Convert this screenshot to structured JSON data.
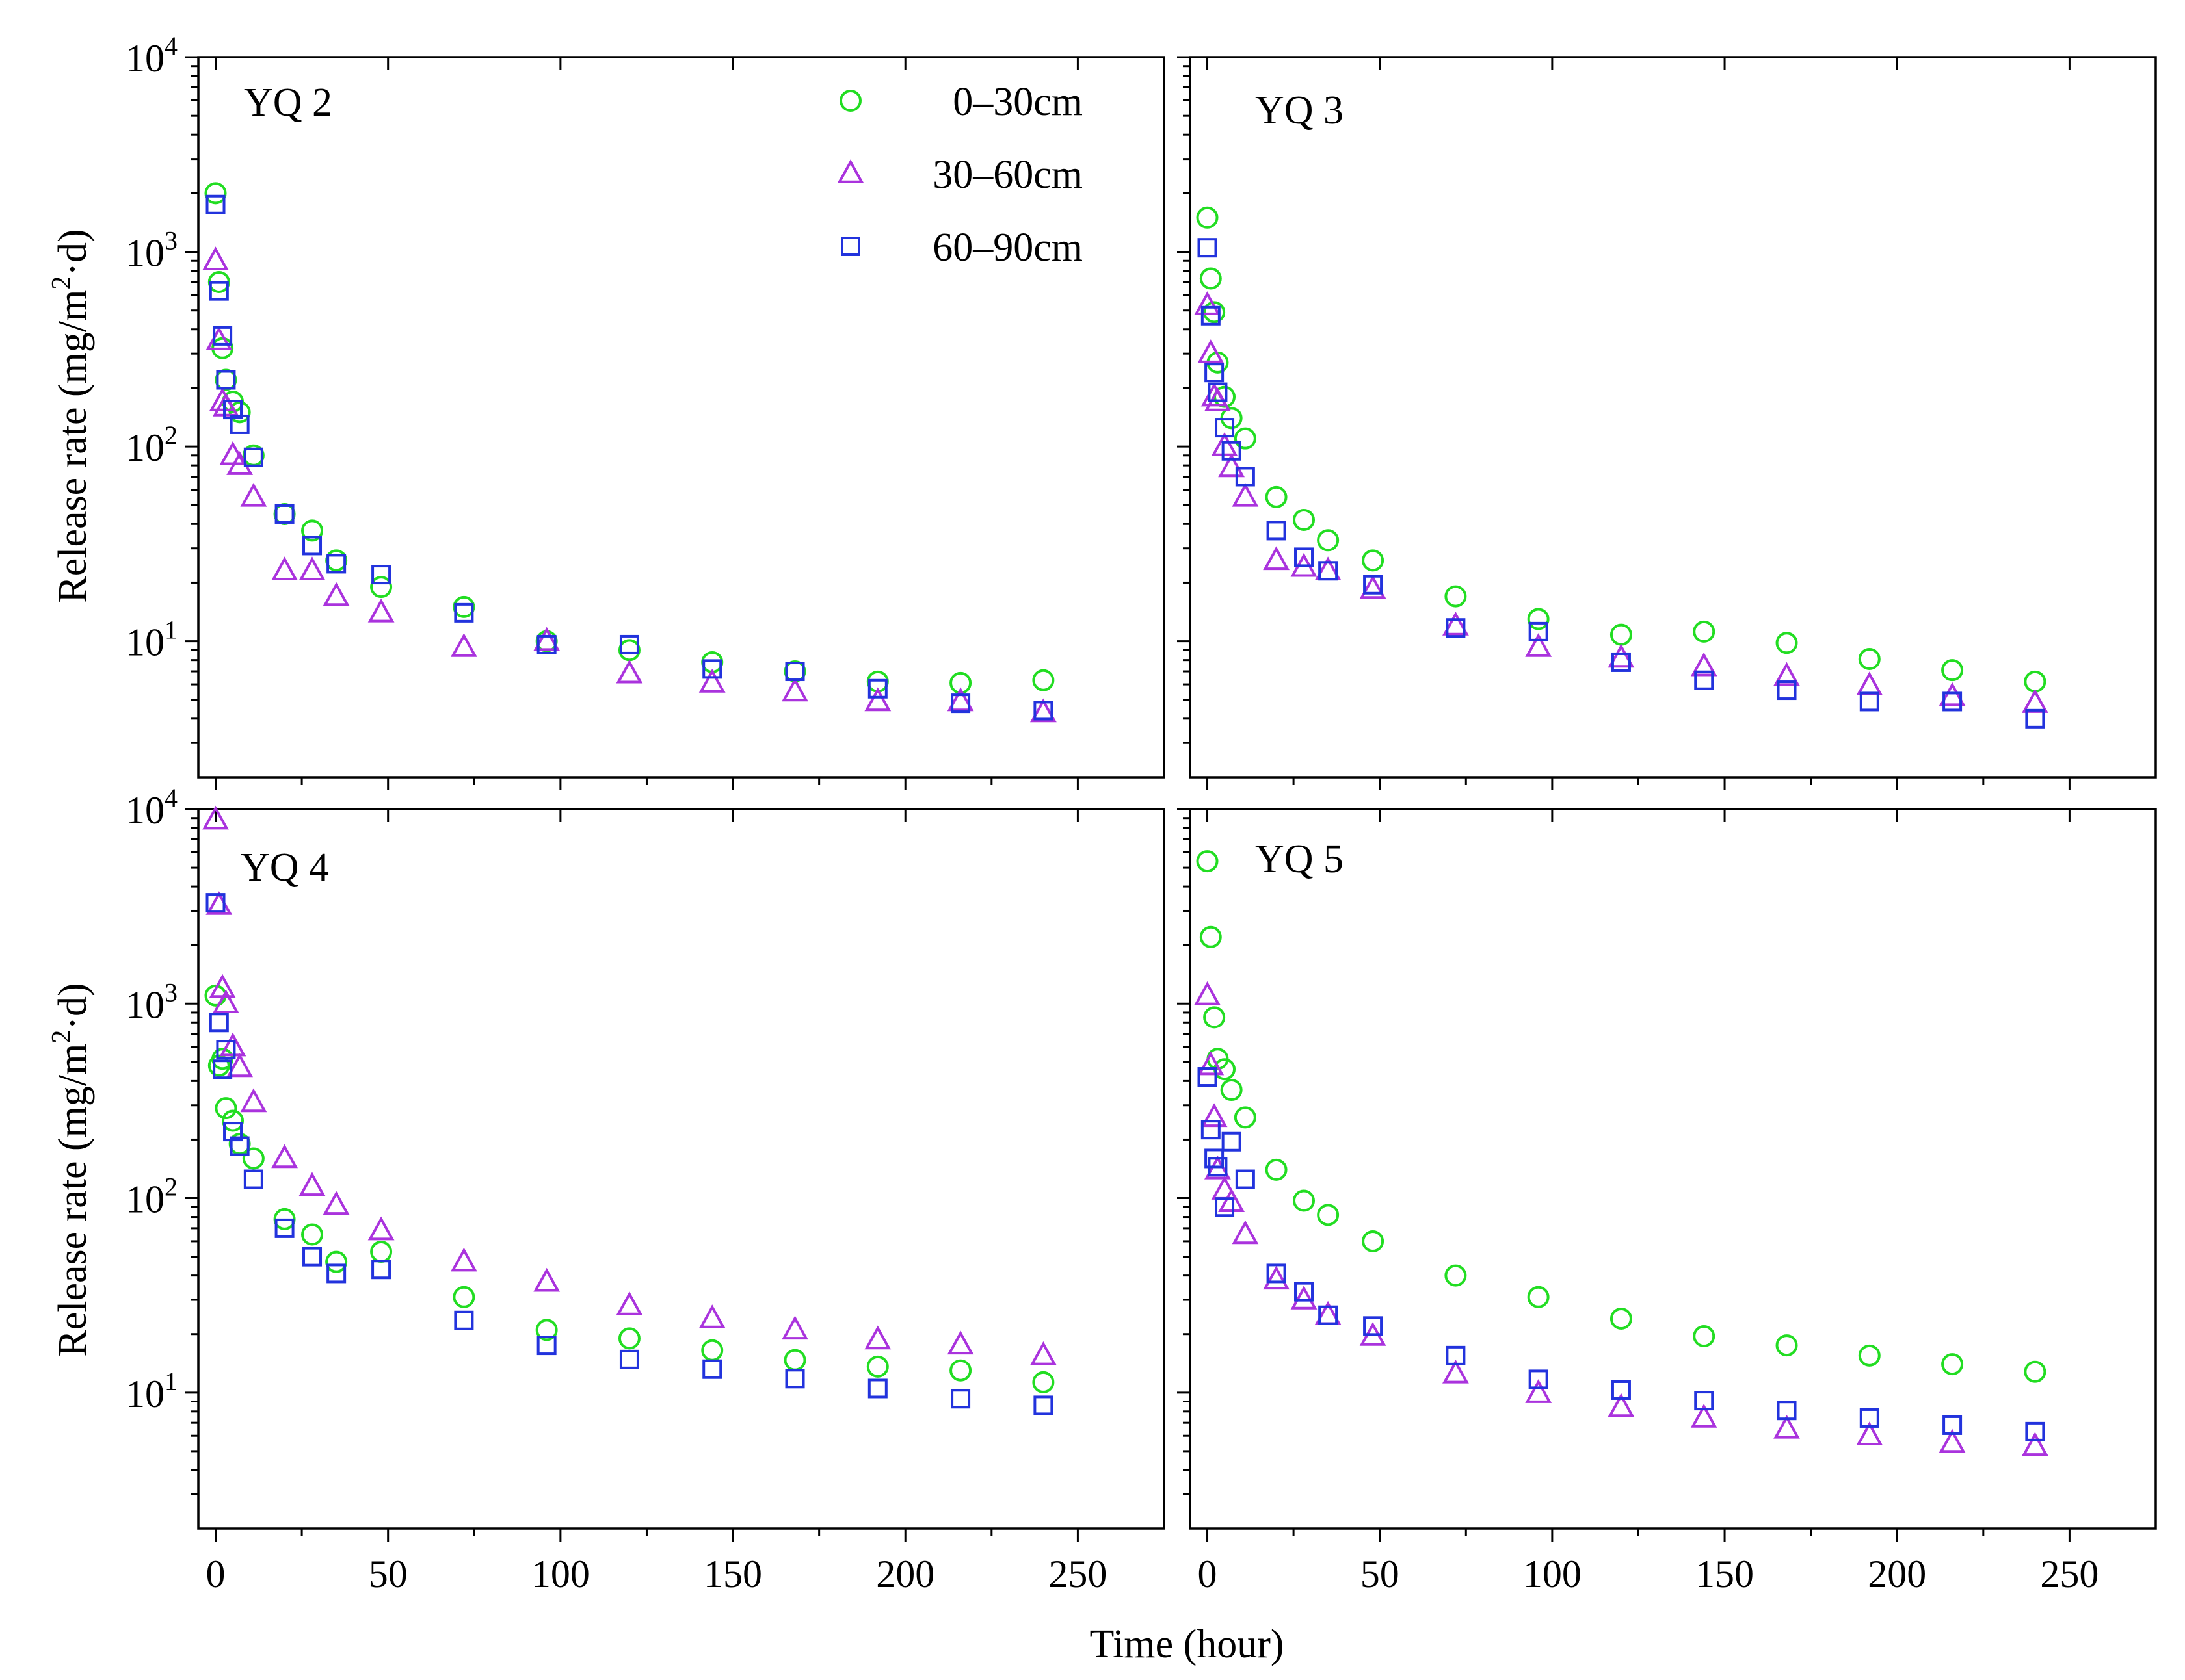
{
  "chart_data": {
    "type": "scatter",
    "title": "",
    "xlabel": "Time (hour)",
    "ylabel": "Release rate (mg/m2·d)",
    "ylabel_parts": {
      "pre": "Release rate (mg/m",
      "sup": "2",
      "post": "·d)"
    },
    "xlim": [
      -5,
      275
    ],
    "ylim": [
      2,
      10000
    ],
    "yscale": "log",
    "x_ticks": [
      0,
      50,
      100,
      150,
      200,
      250
    ],
    "x_tick_labels": [
      "0",
      "50",
      "100",
      "150",
      "200",
      "250"
    ],
    "y_ticks": [
      10,
      100,
      1000,
      10000
    ],
    "y_tick_labels": [
      {
        "base": "10",
        "exp": "1"
      },
      {
        "base": "10",
        "exp": "2"
      },
      {
        "base": "10",
        "exp": "3"
      },
      {
        "base": "10",
        "exp": "4"
      }
    ],
    "legend": {
      "placement": "top-right of first panel",
      "entries": [
        {
          "label": "0–30cm",
          "marker": "circle",
          "color": "#22dd22"
        },
        {
          "label": "30–60cm",
          "marker": "triangle",
          "color": "#aa33dd"
        },
        {
          "label": "60–90cm",
          "marker": "square",
          "color": "#2233dd"
        }
      ]
    },
    "panels": [
      {
        "label": "YQ 2",
        "series": [
          {
            "name": "0–30cm",
            "x": [
              0,
              1,
              2,
              3,
              5,
              7,
              11,
              20,
              28,
              35,
              48,
              72,
              96,
              120,
              144,
              168,
              192,
              216,
              240
            ],
            "y": [
              2000,
              700,
              320,
              220,
              170,
              150,
              90,
              45,
              37,
              26,
              19,
              15,
              10,
              9,
              7.8,
              7,
              6.2,
              6.1,
              6.3
            ]
          },
          {
            "name": "30–60cm",
            "x": [
              0,
              1,
              2,
              3,
              5,
              7,
              11,
              20,
              28,
              35,
              48,
              72,
              96,
              120,
              144,
              168,
              192,
              216,
              240
            ],
            "y": [
              900,
              350,
              170,
              160,
              90,
              80,
              55,
              23,
              23,
              17,
              14,
              9.3,
              10,
              6.8,
              6.1,
              5.5,
              4.9,
              4.9,
              4.3
            ]
          },
          {
            "name": "60–90cm",
            "x": [
              0,
              1,
              2,
              3,
              5,
              7,
              11,
              20,
              28,
              35,
              48,
              72,
              96,
              120,
              144,
              168,
              192,
              216,
              240
            ],
            "y": [
              1750,
              630,
              370,
              220,
              155,
              130,
              88,
              45,
              31,
              25,
              22,
              14,
              9.6,
              9.6,
              7.2,
              7,
              5.7,
              4.8,
              4.4
            ]
          }
        ]
      },
      {
        "label": "YQ 3",
        "series": [
          {
            "name": "0–30cm",
            "x": [
              0,
              1,
              2,
              3,
              5,
              7,
              11,
              20,
              28,
              35,
              48,
              72,
              96,
              120,
              144,
              168,
              192,
              216,
              240
            ],
            "y": [
              1500,
              730,
              490,
              270,
              180,
              140,
              110,
              55,
              42,
              33,
              26,
              17,
              13,
              10.8,
              11.2,
              9.8,
              8.1,
              7.1,
              6.2
            ]
          },
          {
            "name": "30–60cm",
            "x": [
              0,
              1,
              2,
              3,
              5,
              7,
              11,
              20,
              28,
              35,
              48,
              72,
              96,
              120,
              144,
              168,
              192,
              216,
              240
            ],
            "y": [
              530,
              300,
              180,
              170,
              100,
              78,
              55,
              26,
              24,
              23,
              18.5,
              12,
              9.3,
              8.2,
              7.4,
              6.6,
              5.9,
              5.2,
              4.8
            ]
          },
          {
            "name": "60–90cm",
            "x": [
              0,
              1,
              2,
              3,
              5,
              7,
              11,
              20,
              28,
              35,
              48,
              72,
              96,
              120,
              144,
              168,
              192,
              216,
              240
            ],
            "y": [
              1050,
              470,
              240,
              190,
              125,
              95,
              70,
              37,
              27,
              23,
              19.5,
              11.7,
              11.2,
              7.8,
              6.3,
              5.6,
              4.9,
              4.9,
              4
            ]
          }
        ]
      },
      {
        "label": "YQ 4",
        "series": [
          {
            "name": "0–30cm",
            "x": [
              0,
              1,
              2,
              3,
              5,
              7,
              11,
              20,
              28,
              35,
              48,
              72,
              96,
              120,
              144,
              168,
              192,
              216,
              240
            ],
            "y": [
              1100,
              480,
              520,
              290,
              250,
              190,
              160,
              78,
              65,
              47,
              53,
              31,
              21,
              19,
              16.5,
              14.7,
              13.6,
              13,
              11.3
            ]
          },
          {
            "name": "30–60cm",
            "x": [
              0,
              1,
              2,
              3,
              5,
              7,
              11,
              20,
              28,
              35,
              48,
              72,
              96,
              120,
              144,
              168,
              192,
              216,
              240
            ],
            "y": [
              8800,
              3200,
              1200,
              1000,
              600,
              470,
              310,
              160,
              115,
              92,
              68,
              47,
              37,
              28,
              24,
              21,
              18.7,
              17.6,
              15.5
            ]
          },
          {
            "name": "60–90cm",
            "x": [
              0,
              1,
              2,
              3,
              5,
              7,
              11,
              20,
              28,
              35,
              48,
              72,
              96,
              120,
              144,
              168,
              192,
              216,
              240
            ],
            "y": [
              3300,
              800,
              460,
              580,
              220,
              185,
              125,
              70,
              50,
              41,
              43,
              23.5,
              17.5,
              14.8,
              13.2,
              11.8,
              10.5,
              9.3,
              8.6
            ]
          }
        ]
      },
      {
        "label": "YQ 5",
        "series": [
          {
            "name": "0–30cm",
            "x": [
              0,
              1,
              2,
              3,
              5,
              7,
              11,
              20,
              28,
              35,
              48,
              72,
              96,
              120,
              144,
              168,
              192,
              216,
              240
            ],
            "y": [
              5400,
              2200,
              850,
              520,
              460,
              360,
              260,
              140,
              97,
              82,
              60,
              40,
              31,
              24,
              19.5,
              17.5,
              15.5,
              14,
              12.8
            ]
          },
          {
            "name": "30–60cm",
            "x": [
              0,
              1,
              2,
              3,
              5,
              7,
              11,
              20,
              28,
              35,
              48,
              72,
              96,
              120,
              144,
              168,
              192,
              216,
              240
            ],
            "y": [
              1100,
              480,
              260,
              140,
              110,
              95,
              65,
              38,
              30,
              25,
              19.5,
              12.5,
              9.9,
              8.4,
              7.4,
              6.5,
              6,
              5.5,
              5.3
            ]
          },
          {
            "name": "60–90cm",
            "x": [
              0,
              1,
              2,
              3,
              5,
              7,
              11,
              20,
              28,
              35,
              48,
              72,
              96,
              120,
              144,
              168,
              192,
              216,
              240
            ],
            "y": [
              420,
              225,
              160,
              145,
              90,
              195,
              125,
              41,
              33,
              25,
              22,
              15.5,
              11.7,
              10.3,
              9.1,
              8.1,
              7.4,
              6.8,
              6.3
            ]
          }
        ]
      }
    ]
  }
}
